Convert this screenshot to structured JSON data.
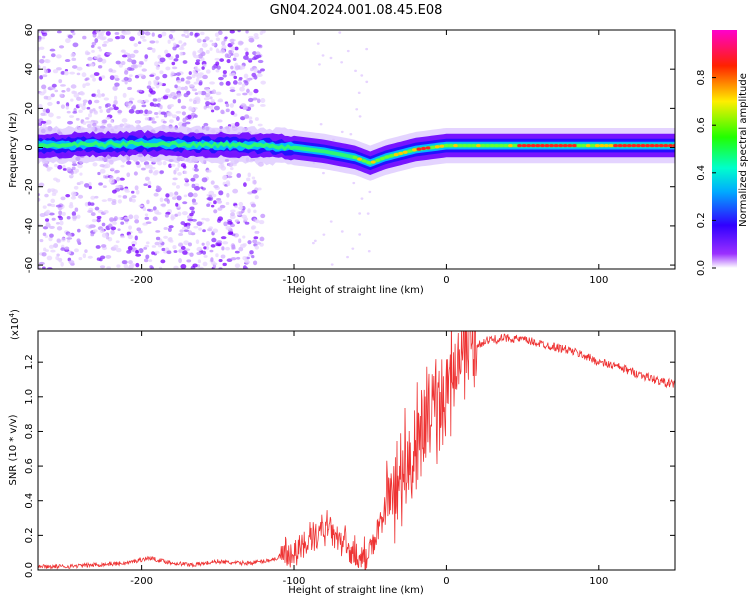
{
  "title": "GN04.2024.001.08.45.E08",
  "chart_data": [
    {
      "type": "heatmap",
      "xlabel": "Height of straight line (km)",
      "ylabel": "Frequency (Hz)",
      "xlim": [
        -268,
        150
      ],
      "ylim": [
        -62,
        60
      ],
      "xticks": [
        -200,
        -100,
        0,
        100
      ],
      "xtick_labels": [
        "-200",
        "-100",
        "0",
        "100"
      ],
      "yticks": [
        60,
        40,
        20,
        0,
        -20,
        -40,
        -60
      ],
      "ytick_labels": [
        "60",
        "40",
        "20",
        "0",
        "-20",
        "-40",
        "-60"
      ],
      "colorbar": {
        "label": "Normalized spectral amplitude",
        "range": [
          0,
          1
        ],
        "ticks": [
          0.0,
          0.2,
          0.4,
          0.6,
          0.8
        ],
        "tick_labels": [
          "0.0",
          "0.2",
          "0.4",
          "0.6",
          "0.8"
        ],
        "colormap": [
          "#ffffff",
          "#7b00ff",
          "#0000ff",
          "#00ffff",
          "#00ff00",
          "#ffff00",
          "#ff0000",
          "#ff00ff"
        ]
      },
      "ridge": {
        "x": [
          -268,
          -200,
          -120,
          -100,
          -80,
          -60,
          -50,
          -40,
          -30,
          -20,
          -10,
          0,
          150
        ],
        "y": [
          1,
          2,
          1,
          0,
          -2,
          -5,
          -8,
          -5,
          -3,
          -1,
          0,
          1,
          1
        ]
      },
      "scatter_extent_x": [
        -268,
        -120
      ]
    },
    {
      "type": "line",
      "xlabel": "Height of straight line (km)",
      "ylabel": "SNR (10 * v/v)",
      "scale_label": "(x10",
      "scale_exponent": "4",
      "scale_suffix": ")",
      "xlim": [
        -268,
        150
      ],
      "ylim": [
        0,
        1.38
      ],
      "xticks": [
        -200,
        -100,
        0,
        100
      ],
      "xtick_labels": [
        "-200",
        "-100",
        "0",
        "100"
      ],
      "yticks": [
        0.0,
        0.2,
        0.4,
        0.6,
        0.8,
        1.0,
        1.2
      ],
      "ytick_labels": [
        "0.0",
        "0.2",
        "0.4",
        "0.6",
        "0.8",
        "1.0",
        "1.2"
      ],
      "color": "#ee3333",
      "series": [
        {
          "x": [
            -268,
            -250,
            -230,
            -210,
            -195,
            -180,
            -165,
            -150,
            -140,
            -130,
            -120,
            -110,
            -100,
            -90,
            -80,
            -70,
            -65,
            -60,
            -55,
            -50,
            -45,
            -40,
            -35,
            -30,
            -25,
            -20,
            -15,
            -10,
            -5,
            0,
            5,
            10,
            15,
            20,
            25,
            30,
            40,
            50,
            60,
            70,
            80,
            90,
            100,
            110,
            120,
            130,
            140,
            150
          ],
          "y": [
            0.02,
            0.02,
            0.03,
            0.04,
            0.07,
            0.04,
            0.03,
            0.05,
            0.04,
            0.04,
            0.05,
            0.07,
            0.11,
            0.16,
            0.25,
            0.18,
            0.12,
            0.08,
            0.07,
            0.12,
            0.2,
            0.35,
            0.45,
            0.55,
            0.6,
            0.7,
            0.8,
            0.9,
            0.95,
            1.05,
            1.15,
            1.22,
            1.27,
            1.3,
            1.32,
            1.33,
            1.34,
            1.33,
            1.31,
            1.29,
            1.27,
            1.24,
            1.2,
            1.18,
            1.15,
            1.12,
            1.09,
            1.07
          ]
        }
      ]
    }
  ]
}
